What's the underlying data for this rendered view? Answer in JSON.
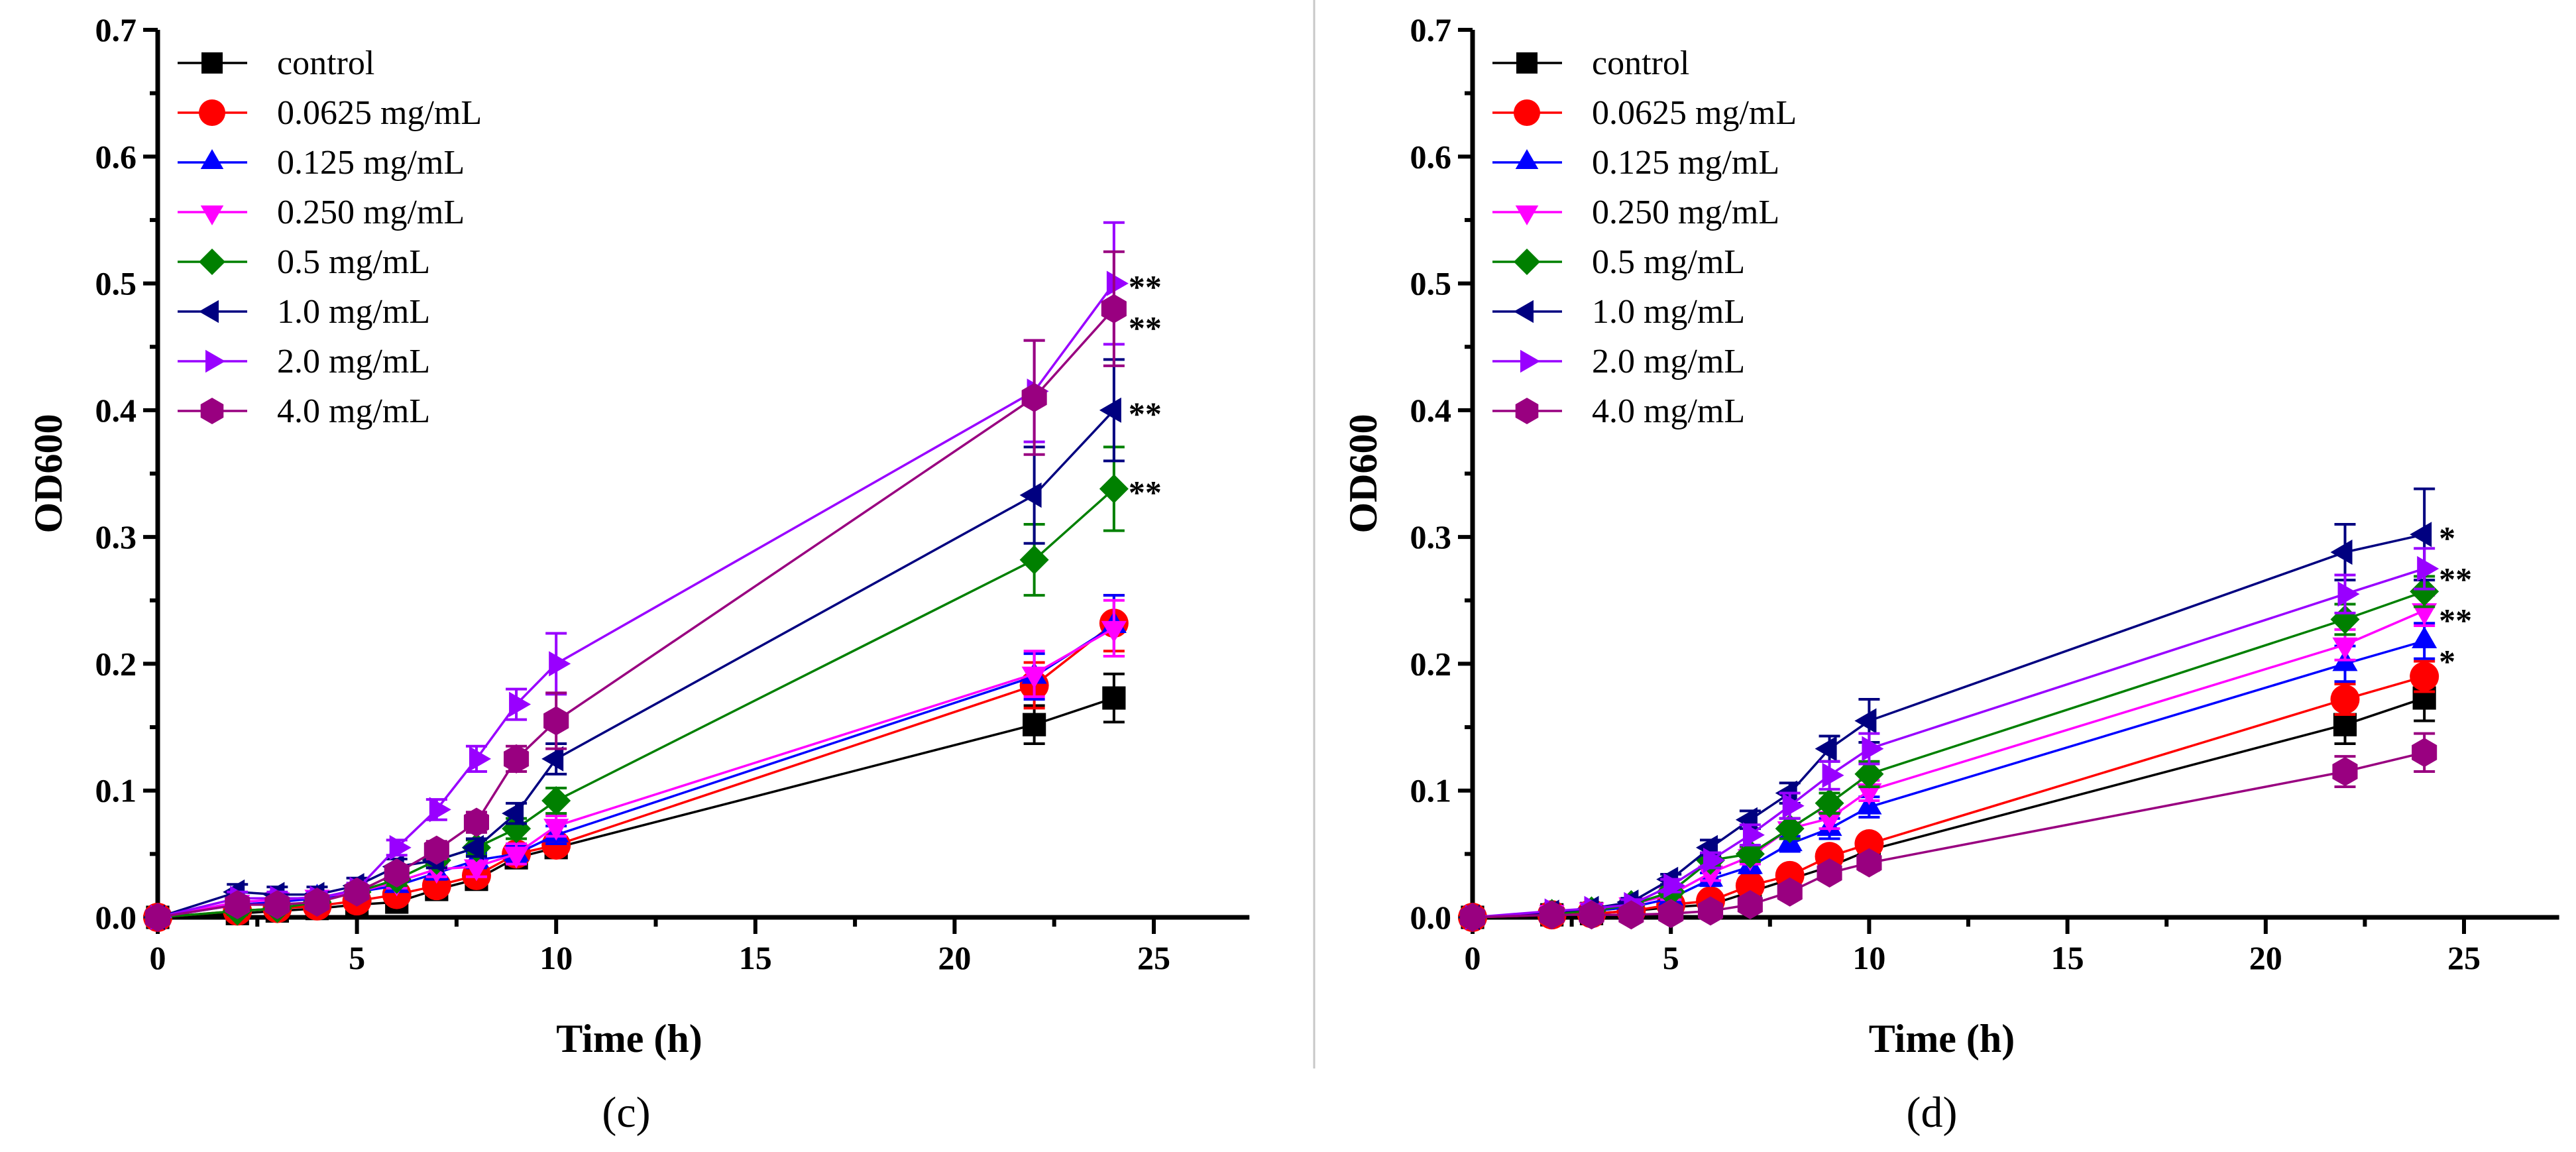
{
  "chart_data": [
    {
      "type": "line",
      "panel_label": "(c)",
      "xlabel": "Time (h)",
      "ylabel": "OD600",
      "xlim": [
        0,
        27.4
      ],
      "ylim": [
        0,
        0.7
      ],
      "xticks": [
        0,
        5,
        10,
        15,
        20,
        25
      ],
      "yticks": [
        "0.0",
        "0.1",
        "0.2",
        "0.3",
        "0.4",
        "0.5",
        "0.6",
        "0.7"
      ],
      "legend_position": "top-left",
      "x": [
        0,
        2,
        3,
        4,
        5,
        6,
        7,
        8,
        9,
        10,
        22,
        24
      ],
      "series": [
        {
          "name": "control",
          "color": "#000000",
          "marker": "square",
          "values": [
            0,
            0.003,
            0.005,
            0.007,
            0.01,
            0.012,
            0.022,
            0.03,
            0.047,
            0.055,
            0.152,
            0.173
          ],
          "error": [
            0.002,
            0.002,
            0.002,
            0.002,
            0.003,
            0.003,
            0.004,
            0.005,
            0.005,
            0.005,
            0.015,
            0.019
          ],
          "annotation": ""
        },
        {
          "name": "0.0625 mg/mL",
          "color": "#ff0000",
          "marker": "circle",
          "values": [
            0,
            0.005,
            0.007,
            0.009,
            0.013,
            0.018,
            0.025,
            0.033,
            0.05,
            0.057,
            0.183,
            0.232
          ],
          "error": [
            0.002,
            0.002,
            0.002,
            0.003,
            0.003,
            0.004,
            0.004,
            0.005,
            0.005,
            0.005,
            0.018,
            0.022
          ],
          "annotation": ""
        },
        {
          "name": "0.125 mg/mL",
          "color": "#0000ff",
          "marker": "triangle-up",
          "values": [
            0,
            0.01,
            0.012,
            0.015,
            0.02,
            0.025,
            0.035,
            0.045,
            0.05,
            0.065,
            0.19,
            0.23
          ],
          "error": [
            0.002,
            0.003,
            0.003,
            0.003,
            0.004,
            0.004,
            0.005,
            0.006,
            0.006,
            0.007,
            0.018,
            0.024
          ],
          "annotation": ""
        },
        {
          "name": "0.250 mg/mL",
          "color": "#ff00ff",
          "marker": "triangle-down",
          "values": [
            0,
            0.012,
            0.014,
            0.016,
            0.02,
            0.028,
            0.038,
            0.04,
            0.05,
            0.072,
            0.192,
            0.228
          ],
          "error": [
            0.002,
            0.003,
            0.003,
            0.003,
            0.004,
            0.005,
            0.006,
            0.008,
            0.008,
            0.008,
            0.018,
            0.022
          ],
          "annotation": ""
        },
        {
          "name": "0.5 mg/mL",
          "color": "#008000",
          "marker": "diamond",
          "values": [
            0,
            0.005,
            0.007,
            0.012,
            0.02,
            0.03,
            0.045,
            0.055,
            0.07,
            0.092,
            0.282,
            0.338
          ],
          "error": [
            0.002,
            0.003,
            0.003,
            0.003,
            0.004,
            0.005,
            0.006,
            0.006,
            0.008,
            0.01,
            0.028,
            0.033
          ],
          "annotation": "**"
        },
        {
          "name": "1.0 mg/mL",
          "color": "#000080",
          "marker": "triangle-left",
          "values": [
            0,
            0.02,
            0.018,
            0.018,
            0.025,
            0.04,
            0.045,
            0.055,
            0.082,
            0.125,
            0.333,
            0.4
          ],
          "error": [
            0.002,
            0.006,
            0.006,
            0.006,
            0.006,
            0.006,
            0.006,
            0.007,
            0.008,
            0.012,
            0.038,
            0.04
          ],
          "annotation": "**"
        },
        {
          "name": "2.0 mg/mL",
          "color": "#9900ff",
          "marker": "triangle-right",
          "values": [
            0,
            0.015,
            0.015,
            0.015,
            0.022,
            0.055,
            0.085,
            0.125,
            0.168,
            0.2,
            0.415,
            0.5
          ],
          "error": [
            0.002,
            0.005,
            0.005,
            0.005,
            0.005,
            0.006,
            0.008,
            0.01,
            0.012,
            0.024,
            0.04,
            0.048
          ],
          "annotation": "**"
        },
        {
          "name": "4.0 mg/mL",
          "color": "#990080",
          "marker": "hexagon",
          "values": [
            0,
            0.01,
            0.01,
            0.012,
            0.02,
            0.035,
            0.053,
            0.075,
            0.125,
            0.155,
            0.41,
            0.48
          ],
          "error": [
            0.002,
            0.005,
            0.005,
            0.005,
            0.005,
            0.006,
            0.007,
            0.008,
            0.01,
            0.022,
            0.045,
            0.045
          ],
          "annotation": "**"
        }
      ]
    },
    {
      "type": "line",
      "panel_label": "(d)",
      "xlabel": "Time (h)",
      "ylabel": "OD600",
      "xlim": [
        0,
        27.4
      ],
      "ylim": [
        0,
        0.7
      ],
      "xticks": [
        0,
        5,
        10,
        15,
        20,
        25
      ],
      "yticks": [
        "0.0",
        "0.1",
        "0.2",
        "0.3",
        "0.4",
        "0.5",
        "0.6",
        "0.7"
      ],
      "legend_position": "top-left",
      "x": [
        0,
        2,
        3,
        4,
        5,
        6,
        7,
        8,
        9,
        10,
        22,
        24
      ],
      "series": [
        {
          "name": "control",
          "color": "#000000",
          "marker": "square",
          "values": [
            0,
            0.002,
            0.003,
            0.005,
            0.008,
            0.01,
            0.02,
            0.03,
            0.04,
            0.053,
            0.152,
            0.173
          ],
          "error": [
            0.002,
            0.002,
            0.002,
            0.002,
            0.002,
            0.003,
            0.003,
            0.004,
            0.004,
            0.005,
            0.015,
            0.018
          ],
          "annotation": ""
        },
        {
          "name": "0.0625 mg/mL",
          "color": "#ff0000",
          "marker": "circle",
          "values": [
            0,
            0.002,
            0.003,
            0.005,
            0.01,
            0.013,
            0.025,
            0.033,
            0.048,
            0.058,
            0.172,
            0.19
          ],
          "error": [
            0.002,
            0.002,
            0.002,
            0.002,
            0.003,
            0.003,
            0.004,
            0.004,
            0.004,
            0.005,
            0.012,
            0.012
          ],
          "annotation": ""
        },
        {
          "name": "0.125 mg/mL",
          "color": "#0000ff",
          "marker": "triangle-up",
          "values": [
            0,
            0.003,
            0.005,
            0.008,
            0.015,
            0.03,
            0.04,
            0.058,
            0.07,
            0.087,
            0.2,
            0.218
          ],
          "error": [
            0.002,
            0.002,
            0.002,
            0.003,
            0.004,
            0.005,
            0.005,
            0.006,
            0.008,
            0.008,
            0.014,
            0.014
          ],
          "annotation": ""
        },
        {
          "name": "0.250 mg/mL",
          "color": "#ff00ff",
          "marker": "triangle-down",
          "values": [
            0,
            0.004,
            0.006,
            0.01,
            0.018,
            0.035,
            0.048,
            0.07,
            0.078,
            0.1,
            0.215,
            0.242
          ],
          "error": [
            0.002,
            0.002,
            0.003,
            0.003,
            0.004,
            0.006,
            0.006,
            0.008,
            0.008,
            0.008,
            0.012,
            0.012
          ],
          "annotation": "*"
        },
        {
          "name": "0.5 mg/mL",
          "color": "#008000",
          "marker": "diamond",
          "values": [
            0,
            0.003,
            0.005,
            0.01,
            0.02,
            0.045,
            0.05,
            0.07,
            0.09,
            0.113,
            0.235,
            0.257
          ],
          "error": [
            0.002,
            0.002,
            0.003,
            0.003,
            0.004,
            0.005,
            0.006,
            0.008,
            0.008,
            0.01,
            0.012,
            0.012
          ],
          "annotation": "**"
        },
        {
          "name": "1.0 mg/mL",
          "color": "#000080",
          "marker": "triangle-left",
          "values": [
            0,
            0.004,
            0.007,
            0.012,
            0.03,
            0.055,
            0.077,
            0.098,
            0.133,
            0.155,
            0.288,
            0.302
          ],
          "error": [
            0.002,
            0.002,
            0.003,
            0.003,
            0.004,
            0.006,
            0.007,
            0.008,
            0.01,
            0.017,
            0.022,
            0.036
          ],
          "annotation": "*"
        },
        {
          "name": "2.0 mg/mL",
          "color": "#9900ff",
          "marker": "triangle-right",
          "values": [
            0,
            0.005,
            0.007,
            0.01,
            0.025,
            0.045,
            0.065,
            0.088,
            0.112,
            0.133,
            0.255,
            0.275
          ],
          "error": [
            0.002,
            0.003,
            0.003,
            0.004,
            0.005,
            0.006,
            0.008,
            0.01,
            0.011,
            0.012,
            0.015,
            0.016
          ],
          "annotation": "**"
        },
        {
          "name": "4.0 mg/mL",
          "color": "#990080",
          "marker": "hexagon",
          "values": [
            0,
            0.002,
            0.002,
            0.002,
            0.003,
            0.005,
            0.01,
            0.02,
            0.035,
            0.043,
            0.115,
            0.13
          ],
          "error": [
            0.001,
            0.001,
            0.001,
            0.001,
            0.002,
            0.002,
            0.003,
            0.004,
            0.005,
            0.006,
            0.012,
            0.015
          ],
          "annotation": ""
        }
      ]
    }
  ]
}
